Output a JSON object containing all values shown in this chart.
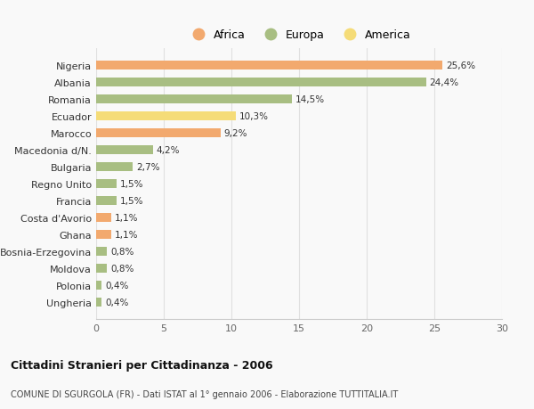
{
  "categories": [
    "Nigeria",
    "Albania",
    "Romania",
    "Ecuador",
    "Marocco",
    "Macedonia d/N.",
    "Bulgaria",
    "Regno Unito",
    "Francia",
    "Costa d'Avorio",
    "Ghana",
    "Bosnia-Erzegovina",
    "Moldova",
    "Polonia",
    "Ungheria"
  ],
  "values": [
    25.6,
    24.4,
    14.5,
    10.3,
    9.2,
    4.2,
    2.7,
    1.5,
    1.5,
    1.1,
    1.1,
    0.8,
    0.8,
    0.4,
    0.4
  ],
  "labels": [
    "25,6%",
    "24,4%",
    "14,5%",
    "10,3%",
    "9,2%",
    "4,2%",
    "2,7%",
    "1,5%",
    "1,5%",
    "1,1%",
    "1,1%",
    "0,8%",
    "0,8%",
    "0,4%",
    "0,4%"
  ],
  "continents": [
    "Africa",
    "Europa",
    "Europa",
    "America",
    "Africa",
    "Europa",
    "Europa",
    "Europa",
    "Europa",
    "Africa",
    "Africa",
    "Europa",
    "Europa",
    "Europa",
    "Europa"
  ],
  "colors": {
    "Africa": "#F2A96E",
    "Europa": "#A8BE82",
    "America": "#F5DC78"
  },
  "legend_order": [
    "Africa",
    "Europa",
    "America"
  ],
  "xlim": [
    0,
    30
  ],
  "xticks": [
    0,
    5,
    10,
    15,
    20,
    25,
    30
  ],
  "title1": "Cittadini Stranieri per Cittadinanza - 2006",
  "title2": "COMUNE DI SGURGOLA (FR) - Dati ISTAT al 1° gennaio 2006 - Elaborazione TUTTITALIA.IT",
  "background_color": "#f9f9f9",
  "grid_color": "#e0e0e0",
  "bar_height": 0.55,
  "label_fontsize": 7.5,
  "ytick_fontsize": 8,
  "xtick_fontsize": 8
}
